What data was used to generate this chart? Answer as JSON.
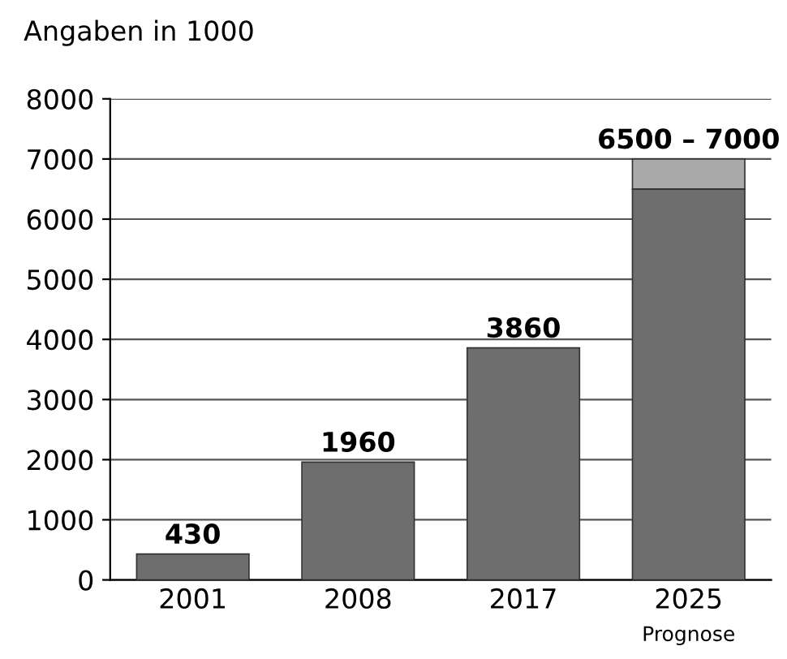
{
  "chart_data": {
    "type": "bar",
    "ylabel": "Angaben in 1000",
    "categories": [
      "2001",
      "2008",
      "2017",
      "2025"
    ],
    "series": [
      {
        "color": "#6e6e6e",
        "values": [
          430,
          1960,
          3860,
          6500
        ]
      },
      {
        "color": "#a9a9a9",
        "values": [
          null,
          null,
          null,
          500
        ]
      }
    ],
    "stacked": true,
    "totals": [
      "430",
      "1960",
      "3860",
      "6500 – 7000"
    ],
    "ylim": [
      0,
      8000
    ],
    "yticks": [
      0,
      1000,
      2000,
      3000,
      4000,
      5000,
      6000,
      7000,
      8000
    ],
    "grid": "y",
    "annotations": [
      "Prognose"
    ]
  }
}
